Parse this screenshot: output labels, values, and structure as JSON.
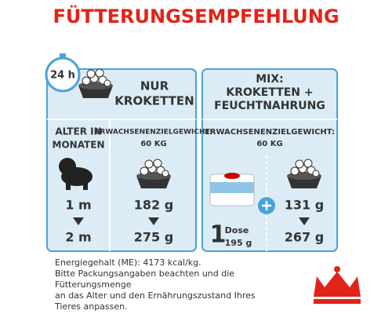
{
  "header": {
    "title": "FÜTTERUNGSEMPFEHLUNG"
  },
  "clock": {
    "label": "24 h"
  },
  "kroketten": {
    "title_lines": [
      "NUR",
      "KROKETTEN"
    ],
    "weight_lines": [
      "ERWACHSENENZIELGEWICHT:",
      "60 KG"
    ],
    "amounts": [
      "182 g",
      "275 g"
    ]
  },
  "age": {
    "title_lines": [
      "ALTER IN",
      "MONATEN"
    ],
    "values": [
      "1 m",
      "2 m"
    ]
  },
  "mix": {
    "title_lines": [
      "MIX:",
      "KROKETTEN +",
      "FEUCHTNAHRUNG"
    ],
    "weight_lines": [
      "ERWACHSENENZIELGEWICHT:",
      "60 KG"
    ],
    "can": {
      "count": "1",
      "unit": "Dose",
      "weight": "195 g"
    },
    "amounts": [
      "131 g",
      "267 g"
    ]
  },
  "footer": {
    "lines": [
      "Energiegehalt (ME): 4173 kcal/kg.",
      "Bitte Packungsangaben beachten und die",
      "Fütterungsmenge",
      "an das Alter und den Ernährungszustand Ihres",
      "Tieres anpassen."
    ]
  }
}
